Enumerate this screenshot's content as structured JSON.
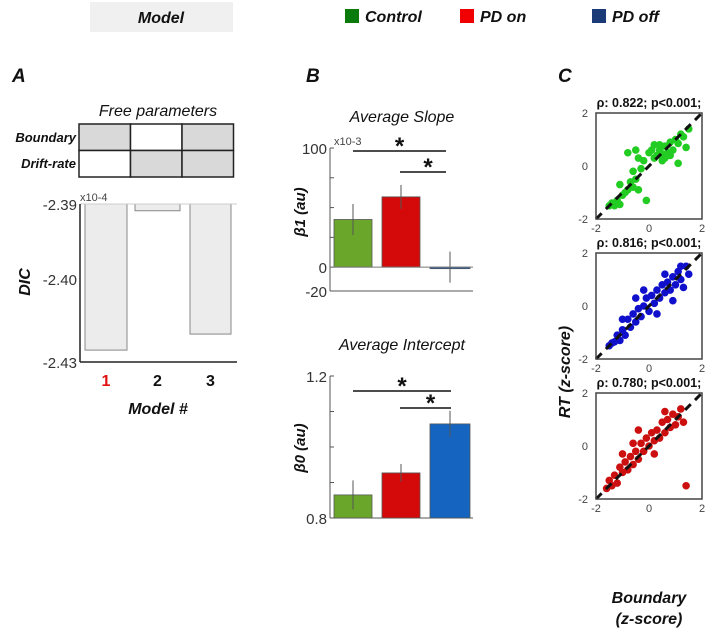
{
  "header": {
    "model_box": "Model",
    "legend": [
      {
        "label": "Control",
        "color": "#0a7a0a"
      },
      {
        "label": "PD on",
        "color": "#f00000"
      },
      {
        "label": "PD off",
        "color": "#1a3a78"
      }
    ]
  },
  "chart_data": [
    {
      "panel": "A",
      "type": "bar",
      "title": "Free parameters",
      "param_table": {
        "rows": [
          "Boundary",
          "Drift-rate"
        ],
        "models": [
          1,
          2,
          3
        ],
        "free": [
          [
            true,
            false,
            true
          ],
          [
            false,
            true,
            true
          ]
        ],
        "free_color": "#d9d9d9"
      },
      "categories": [
        "1",
        "2",
        "3"
      ],
      "highlight_category_color": "#e01010",
      "values": [
        -2.4257,
        -2.3909,
        -2.4199
      ],
      "xlabel": "Model #",
      "ylabel": "DIC",
      "y_multiplier": "x10-4",
      "yticks": [
        "-2.39",
        "-2.40",
        "-2.43"
      ],
      "ylim": [
        -2.43,
        -2.39
      ],
      "bar_color": "#ececec"
    },
    {
      "panel": "B",
      "type": "bar",
      "title": "Average Slope",
      "ylabel": "β1 (au)",
      "y_multiplier": "x10-3",
      "yticks": [
        "100",
        "0",
        "-20"
      ],
      "ylim": [
        -20,
        100
      ],
      "categories": [
        "Control",
        "PD on",
        "PD off"
      ],
      "values": [
        40,
        59,
        0
      ],
      "errors": [
        13,
        10,
        13
      ],
      "colors": [
        "#6aa62a",
        "#d40a0a",
        "#1565c0"
      ],
      "significance": [
        {
          "from": 0,
          "to": 2,
          "label": "*"
        },
        {
          "from": 1,
          "to": 2,
          "label": "*"
        }
      ]
    },
    {
      "panel": "B",
      "type": "bar",
      "title": "Average Intercept",
      "ylabel": "β0 (au)",
      "yticks": [
        "1.2",
        "0.8"
      ],
      "ylim": [
        0.8,
        1.2
      ],
      "categories": [
        "Control",
        "PD on",
        "PD off"
      ],
      "values": [
        0.865,
        0.927,
        1.065
      ],
      "errors": [
        0.041,
        0.025,
        0.037
      ],
      "colors": [
        "#6aa62a",
        "#d40a0a",
        "#1565c0"
      ],
      "significance": [
        {
          "from": 0,
          "to": 2,
          "label": "*"
        },
        {
          "from": 1,
          "to": 2,
          "label": "*"
        }
      ]
    },
    {
      "panel": "C",
      "type": "scatter",
      "ylabel": "RT (z-score)",
      "xlabel_line1": "Boundary",
      "xlabel_line2": "(z-score)",
      "xlim": [
        -2,
        2
      ],
      "ylim": [
        -2,
        2
      ],
      "ticks": [
        "-2",
        "0",
        "2"
      ],
      "plots": [
        {
          "title": "ρ: 0.822; p<0.001;",
          "color": "#22cc22",
          "points": [
            [
              -1.5,
              -1.5
            ],
            [
              -1.4,
              -1.4
            ],
            [
              -1.3,
              -1.5
            ],
            [
              -1.2,
              -1.3
            ],
            [
              -1.1,
              -1.45
            ],
            [
              -1.0,
              -1.1
            ],
            [
              -1.1,
              -0.7
            ],
            [
              -0.9,
              -1.0
            ],
            [
              -0.8,
              -0.9
            ],
            [
              -0.7,
              -0.6
            ],
            [
              -0.6,
              -0.8
            ],
            [
              -0.5,
              -0.5
            ],
            [
              -0.4,
              -0.9
            ],
            [
              -0.6,
              -0.2
            ],
            [
              -0.3,
              -0.1
            ],
            [
              -0.1,
              -1.3
            ],
            [
              -0.4,
              0.3
            ],
            [
              -0.2,
              0.2
            ],
            [
              -0.8,
              0.5
            ],
            [
              -0.5,
              0.6
            ],
            [
              0.0,
              0.5
            ],
            [
              0.1,
              0.6
            ],
            [
              0.2,
              0.3
            ],
            [
              0.3,
              0.4
            ],
            [
              0.4,
              0.6
            ],
            [
              0.5,
              0.2
            ],
            [
              0.5,
              0.45
            ],
            [
              0.6,
              0.3
            ],
            [
              0.7,
              0.5
            ],
            [
              0.4,
              0.8
            ],
            [
              0.6,
              0.75
            ],
            [
              0.8,
              0.9
            ],
            [
              0.9,
              0.6
            ],
            [
              1.0,
              1.0
            ],
            [
              1.1,
              0.85
            ],
            [
              1.2,
              1.2
            ],
            [
              1.3,
              1.1
            ],
            [
              1.5,
              1.4
            ],
            [
              1.1,
              0.1
            ],
            [
              1.4,
              0.7
            ],
            [
              0.2,
              0.8
            ],
            [
              0.8,
              0.4
            ]
          ]
        },
        {
          "title": "ρ: 0.816; p<0.001;",
          "color": "#1010cc",
          "points": [
            [
              -1.5,
              -1.5
            ],
            [
              -1.4,
              -1.4
            ],
            [
              -1.3,
              -1.35
            ],
            [
              -1.2,
              -1.1
            ],
            [
              -1.1,
              -1.3
            ],
            [
              -1.0,
              -0.9
            ],
            [
              -0.9,
              -1.1
            ],
            [
              -0.8,
              -0.5
            ],
            [
              -0.7,
              -0.8
            ],
            [
              -0.6,
              -0.3
            ],
            [
              -0.5,
              -0.6
            ],
            [
              -0.4,
              -0.1
            ],
            [
              -0.3,
              -0.4
            ],
            [
              -0.2,
              0.0
            ],
            [
              -0.1,
              0.3
            ],
            [
              0.0,
              -0.2
            ],
            [
              0.1,
              0.4
            ],
            [
              0.2,
              0.1
            ],
            [
              0.3,
              0.6
            ],
            [
              0.4,
              0.3
            ],
            [
              0.5,
              0.8
            ],
            [
              0.6,
              0.5
            ],
            [
              0.7,
              0.9
            ],
            [
              0.8,
              0.6
            ],
            [
              0.9,
              1.1
            ],
            [
              1.0,
              0.8
            ],
            [
              1.1,
              1.3
            ],
            [
              1.2,
              1.0
            ],
            [
              1.3,
              0.7
            ],
            [
              1.4,
              1.5
            ],
            [
              -0.5,
              0.3
            ],
            [
              0.3,
              -0.3
            ],
            [
              0.9,
              0.2
            ],
            [
              1.5,
              1.2
            ],
            [
              -1.0,
              -0.5
            ],
            [
              0.6,
              1.2
            ],
            [
              -0.2,
              0.6
            ],
            [
              1.2,
              1.5
            ]
          ]
        },
        {
          "title": "ρ: 0.780; p<0.001;",
          "color": "#cc1010",
          "points": [
            [
              -1.6,
              -1.6
            ],
            [
              -1.5,
              -1.3
            ],
            [
              -1.4,
              -1.5
            ],
            [
              -1.3,
              -1.1
            ],
            [
              -1.2,
              -1.4
            ],
            [
              -1.1,
              -0.8
            ],
            [
              -1.0,
              -1.0
            ],
            [
              -0.9,
              -0.6
            ],
            [
              -0.8,
              -0.9
            ],
            [
              -0.7,
              -0.4
            ],
            [
              -0.6,
              -0.7
            ],
            [
              -0.5,
              -0.2
            ],
            [
              -0.4,
              -0.5
            ],
            [
              -0.3,
              0.1
            ],
            [
              -0.2,
              -0.2
            ],
            [
              -0.1,
              0.3
            ],
            [
              0.0,
              0.0
            ],
            [
              0.1,
              0.5
            ],
            [
              0.2,
              0.2
            ],
            [
              0.3,
              0.6
            ],
            [
              0.4,
              0.3
            ],
            [
              0.5,
              0.9
            ],
            [
              0.6,
              0.5
            ],
            [
              0.7,
              1.0
            ],
            [
              0.8,
              0.7
            ],
            [
              0.9,
              1.2
            ],
            [
              1.0,
              0.8
            ],
            [
              1.1,
              1.1
            ],
            [
              1.2,
              1.4
            ],
            [
              1.4,
              -1.5
            ],
            [
              -0.4,
              0.6
            ],
            [
              0.2,
              -0.3
            ],
            [
              1.3,
              0.9
            ],
            [
              -1.0,
              -0.3
            ],
            [
              0.6,
              1.3
            ],
            [
              -0.6,
              0.1
            ]
          ]
        }
      ]
    }
  ]
}
